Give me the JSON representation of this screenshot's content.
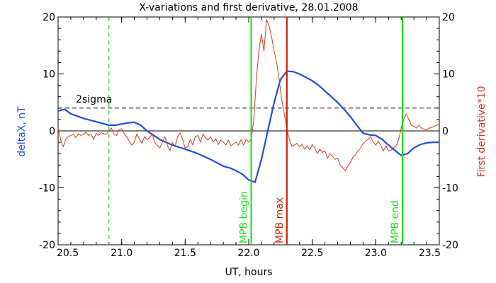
{
  "chart_data": {
    "type": "line",
    "title": "X-variations and first derivative, 28.01.2008",
    "xlabel": "UT, hours",
    "ylabel_left": "deltaX, nT",
    "ylabel_right": "First derivative*10",
    "xlim": [
      20.5,
      23.5
    ],
    "ylim": [
      -20,
      20
    ],
    "y2lim": [
      -20,
      20
    ],
    "x_ticks": [
      "20.5",
      "21.0",
      "21.5",
      "22.0",
      "22.5",
      "23.0",
      "23.5"
    ],
    "y_ticks": [
      "-20",
      "-10",
      "0",
      "10",
      "20"
    ],
    "y2_ticks": [
      "-20",
      "-10",
      "0",
      "10",
      "20"
    ],
    "threshold": {
      "label": "2sigma",
      "value": 4
    },
    "zero_line": 0,
    "markers": [
      {
        "label": "",
        "x": 20.9,
        "color": "#22cc22",
        "style": "dashed"
      },
      {
        "label": "MPB begin",
        "x": 22.02,
        "color": "#22dd22",
        "style": "solid"
      },
      {
        "label": "MPB max",
        "x": 22.3,
        "color": "#cc2200",
        "style": "solid"
      },
      {
        "label": "MPB end",
        "x": 23.21,
        "color": "#22dd22",
        "style": "solid"
      }
    ],
    "series": [
      {
        "name": "deltaX",
        "axis": "left",
        "color": "#1e4fd8",
        "x": [
          20.5,
          20.55,
          20.6,
          20.7,
          20.8,
          20.9,
          20.95,
          21.0,
          21.05,
          21.1,
          21.15,
          21.2,
          21.3,
          21.4,
          21.5,
          21.6,
          21.7,
          21.8,
          21.85,
          21.9,
          21.95,
          22.0,
          22.02,
          22.05,
          22.1,
          22.15,
          22.2,
          22.25,
          22.3,
          22.35,
          22.4,
          22.45,
          22.5,
          22.55,
          22.6,
          22.65,
          22.7,
          22.75,
          22.8,
          22.85,
          22.9,
          22.95,
          23.0,
          23.05,
          23.1,
          23.15,
          23.2,
          23.25,
          23.3,
          23.35,
          23.4,
          23.45,
          23.5
        ],
        "y": [
          3.5,
          3.8,
          3.0,
          2.2,
          1.6,
          1.0,
          1.0,
          1.2,
          1.4,
          1.5,
          1.0,
          0.0,
          -1.5,
          -2.5,
          -3.2,
          -4.0,
          -5.0,
          -6.2,
          -6.5,
          -7.0,
          -7.6,
          -8.6,
          -8.8,
          -9.0,
          -5.0,
          0.0,
          5.0,
          9.0,
          10.5,
          10.4,
          10.0,
          9.4,
          8.8,
          8.0,
          7.0,
          6.0,
          5.0,
          3.8,
          2.5,
          1.0,
          -0.4,
          -0.7,
          -0.8,
          -1.5,
          -2.5,
          -3.4,
          -4.3,
          -4.0,
          -3.0,
          -2.4,
          -2.1,
          -2.0,
          -2.0
        ]
      },
      {
        "name": "First derivative*10",
        "axis": "right",
        "color": "#d03a1a",
        "x": [
          20.5,
          20.52,
          20.54,
          20.56,
          20.58,
          20.6,
          20.62,
          20.64,
          20.66,
          20.68,
          20.7,
          20.72,
          20.74,
          20.76,
          20.78,
          20.8,
          20.82,
          20.84,
          20.86,
          20.88,
          20.9,
          20.92,
          20.94,
          20.96,
          20.98,
          21.0,
          21.02,
          21.04,
          21.06,
          21.08,
          21.1,
          21.12,
          21.14,
          21.16,
          21.18,
          21.2,
          21.22,
          21.24,
          21.26,
          21.28,
          21.3,
          21.32,
          21.34,
          21.36,
          21.38,
          21.4,
          21.42,
          21.44,
          21.46,
          21.48,
          21.5,
          21.52,
          21.54,
          21.56,
          21.58,
          21.6,
          21.62,
          21.64,
          21.66,
          21.68,
          21.7,
          21.72,
          21.74,
          21.76,
          21.78,
          21.8,
          21.82,
          21.84,
          21.86,
          21.88,
          21.9,
          21.92,
          21.94,
          21.96,
          21.98,
          22.0,
          22.02,
          22.04,
          22.06,
          22.08,
          22.1,
          22.12,
          22.14,
          22.16,
          22.18,
          22.2,
          22.22,
          22.24,
          22.26,
          22.28,
          22.3,
          22.32,
          22.34,
          22.36,
          22.38,
          22.4,
          22.42,
          22.44,
          22.46,
          22.48,
          22.5,
          22.52,
          22.54,
          22.56,
          22.58,
          22.6,
          22.62,
          22.64,
          22.66,
          22.68,
          22.7,
          22.72,
          22.74,
          22.76,
          22.78,
          22.8,
          22.82,
          22.84,
          22.86,
          22.88,
          22.9,
          22.92,
          22.94,
          22.96,
          22.98,
          23.0,
          23.02,
          23.04,
          23.06,
          23.08,
          23.1,
          23.12,
          23.14,
          23.16,
          23.18,
          23.2,
          23.22,
          23.24,
          23.26,
          23.28,
          23.3,
          23.32,
          23.34,
          23.36,
          23.38,
          23.4,
          23.42,
          23.44,
          23.46,
          23.48,
          23.5
        ],
        "y": [
          0.5,
          -1.5,
          -2.8,
          -1.5,
          -1.0,
          -0.8,
          -0.6,
          -1.2,
          -0.5,
          -0.8,
          -0.6,
          -0.2,
          -0.8,
          -0.6,
          -1.5,
          -0.4,
          -0.8,
          -0.3,
          -0.5,
          -0.6,
          0.0,
          0.5,
          -0.6,
          -0.8,
          0.2,
          0.4,
          -0.5,
          -1.0,
          -1.8,
          -2.5,
          -2.0,
          -0.5,
          -1.5,
          -2.2,
          -1.0,
          -1.5,
          -1.2,
          -0.5,
          -2.0,
          -2.5,
          -3.0,
          -2.0,
          -1.0,
          -2.5,
          -3.5,
          -2.0,
          -2.8,
          -1.0,
          -0.4,
          -1.5,
          -3.0,
          -2.8,
          -1.5,
          -2.5,
          -1.0,
          -0.8,
          -2.0,
          -0.5,
          -1.2,
          -1.6,
          -1.0,
          -2.0,
          -1.4,
          -2.4,
          -1.6,
          -2.0,
          -2.5,
          -1.6,
          -2.6,
          -2.3,
          -2.0,
          -2.5,
          -1.5,
          -2.5,
          -1.5,
          -2.0,
          -1.5,
          2.0,
          9.0,
          14.0,
          17.0,
          14.0,
          19.5,
          18.5,
          16.5,
          14.0,
          12.0,
          9.0,
          5.5,
          3.0,
          0.5,
          -1.5,
          -2.8,
          -2.5,
          -2.2,
          -2.8,
          -2.4,
          -3.2,
          -2.6,
          -3.3,
          -2.4,
          -3.0,
          -4.0,
          -3.2,
          -3.8,
          -3.5,
          -4.8,
          -4.0,
          -4.5,
          -5.0,
          -4.8,
          -6.0,
          -6.5,
          -7.0,
          -6.2,
          -5.5,
          -4.6,
          -4.2,
          -3.5,
          -3.0,
          -2.2,
          -1.8,
          -1.5,
          -1.0,
          -2.0,
          -2.5,
          -1.8,
          -2.6,
          -3.5,
          -2.6,
          -3.5,
          -3.4,
          -3.0,
          -2.6,
          -1.5,
          0.5,
          2.0,
          3.0,
          2.0,
          1.0,
          0.8,
          0.5,
          1.0,
          0.5,
          0.3,
          0.2,
          0.5,
          0.6,
          0.8,
          1.0,
          1.1
        ]
      }
    ]
  }
}
